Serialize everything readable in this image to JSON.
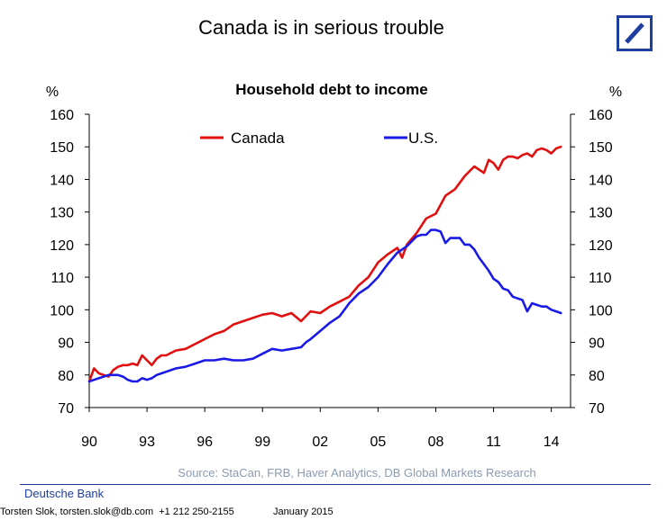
{
  "slide": {
    "title": "Canada is in serious trouble"
  },
  "footer": {
    "brand": "Deutsche Bank",
    "contact": "Torsten Slok, torsten.slok@db.com  +1 212 250-2155",
    "date": "January 2015"
  },
  "colors": {
    "canada": "#e01010",
    "us": "#1a1ae6",
    "logo": "#1f3fa0",
    "source": "#8a9ab0"
  },
  "chart_data": {
    "type": "line",
    "title": "Household debt to income",
    "ylabel_left": "%",
    "ylabel_right": "%",
    "source": "Source: StaCan, FRB, Haver Analytics, DB Global Markets Research",
    "xlim": [
      1990,
      2015
    ],
    "ylim": [
      70,
      160
    ],
    "yticks": [
      70,
      80,
      90,
      100,
      110,
      120,
      130,
      140,
      150,
      160
    ],
    "xticks": [
      {
        "value": 1990,
        "label": "90"
      },
      {
        "value": 1993,
        "label": "93"
      },
      {
        "value": 1996,
        "label": "96"
      },
      {
        "value": 1999,
        "label": "99"
      },
      {
        "value": 2002,
        "label": "02"
      },
      {
        "value": 2005,
        "label": "05"
      },
      {
        "value": 2008,
        "label": "08"
      },
      {
        "value": 2011,
        "label": "11"
      },
      {
        "value": 2014,
        "label": "14"
      }
    ],
    "legend_position": "top",
    "series": [
      {
        "name": "Canada",
        "x": [
          1990.0,
          1990.25,
          1990.5,
          1990.75,
          1991.0,
          1991.25,
          1991.5,
          1991.75,
          1992.0,
          1992.25,
          1992.5,
          1992.75,
          1993.0,
          1993.25,
          1993.5,
          1993.75,
          1994.0,
          1994.5,
          1995.0,
          1995.5,
          1996.0,
          1996.5,
          1997.0,
          1997.5,
          1998.0,
          1998.5,
          1999.0,
          1999.5,
          2000.0,
          2000.5,
          2001.0,
          2001.5,
          2002.0,
          2002.5,
          2003.0,
          2003.5,
          2004.0,
          2004.5,
          2005.0,
          2005.5,
          2006.0,
          2006.25,
          2006.5,
          2007.0,
          2007.5,
          2008.0,
          2008.5,
          2009.0,
          2009.5,
          2010.0,
          2010.25,
          2010.5,
          2010.75,
          2011.0,
          2011.25,
          2011.5,
          2011.75,
          2012.0,
          2012.25,
          2012.5,
          2012.75,
          2013.0,
          2013.25,
          2013.5,
          2013.75,
          2014.0,
          2014.25,
          2014.5
        ],
        "values": [
          78,
          82,
          80.5,
          80,
          79.5,
          81.5,
          82.5,
          83,
          83,
          83.5,
          83,
          86,
          84.5,
          83,
          85,
          86,
          86,
          87.5,
          88,
          89.5,
          91,
          92.5,
          93.5,
          95.5,
          96.5,
          97.5,
          98.5,
          99,
          98,
          99,
          96.5,
          99.5,
          99,
          101,
          102.5,
          104,
          107.5,
          110,
          114.5,
          117,
          119,
          116,
          120,
          123.5,
          128,
          129.5,
          135,
          137,
          141,
          144,
          143,
          142,
          146,
          145,
          143,
          146,
          147,
          147,
          146.5,
          147.5,
          148,
          147,
          149,
          149.5,
          149,
          148,
          149.5,
          150
        ]
      },
      {
        "name": "U.S.",
        "x": [
          1990.0,
          1990.25,
          1990.5,
          1990.75,
          1991.0,
          1991.25,
          1991.5,
          1991.75,
          1992.0,
          1992.25,
          1992.5,
          1992.75,
          1993.0,
          1993.25,
          1993.5,
          1993.75,
          1994.0,
          1994.5,
          1995.0,
          1995.5,
          1996.0,
          1996.5,
          1997.0,
          1997.5,
          1998.0,
          1998.5,
          1999.0,
          1999.5,
          2000.0,
          2000.5,
          2001.0,
          2001.25,
          2001.5,
          2002.0,
          2002.5,
          2003.0,
          2003.5,
          2004.0,
          2004.5,
          2005.0,
          2005.5,
          2006.0,
          2006.5,
          2007.0,
          2007.25,
          2007.5,
          2007.75,
          2008.0,
          2008.25,
          2008.5,
          2008.75,
          2009.0,
          2009.25,
          2009.5,
          2009.75,
          2010.0,
          2010.25,
          2010.5,
          2010.75,
          2011.0,
          2011.25,
          2011.5,
          2011.75,
          2012.0,
          2012.25,
          2012.5,
          2012.75,
          2013.0,
          2013.25,
          2013.5,
          2013.75,
          2014.0,
          2014.25,
          2014.5
        ],
        "values": [
          78,
          78.5,
          79,
          79.5,
          80,
          80,
          80,
          79.5,
          78.5,
          78,
          78,
          79,
          78.5,
          79,
          80,
          80.5,
          81,
          82,
          82.5,
          83.5,
          84.5,
          84.5,
          85,
          84.5,
          84.5,
          85,
          86.5,
          88,
          87.5,
          88,
          88.5,
          90,
          91,
          93.5,
          96,
          98,
          102,
          105,
          107,
          110,
          114,
          117.5,
          119.5,
          122.5,
          123,
          123,
          124.5,
          124.5,
          124,
          120.5,
          122,
          122,
          122,
          120,
          120,
          118.5,
          116,
          114,
          112,
          109.5,
          108.5,
          106.5,
          106,
          104,
          103.5,
          103,
          99.5,
          102,
          101.5,
          101,
          101,
          100,
          99.5,
          99
        ]
      }
    ]
  }
}
